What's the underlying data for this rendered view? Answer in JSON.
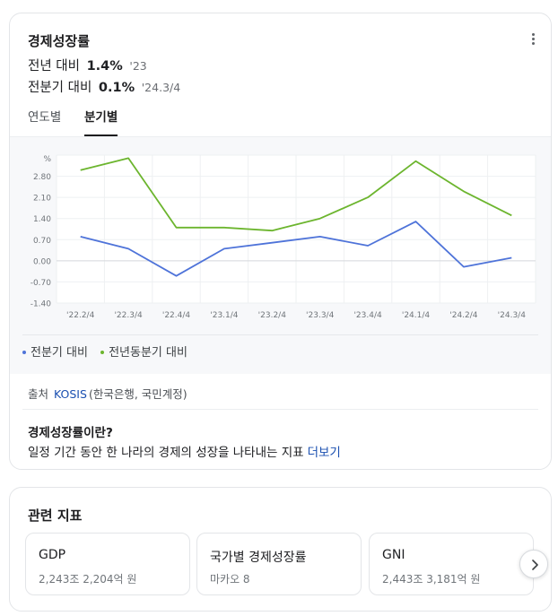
{
  "header": {
    "title": "경제성장률",
    "yoy": {
      "label": "전년 대비",
      "value": "1.4%",
      "period": "'23"
    },
    "qoq": {
      "label": "전분기 대비",
      "value": "0.1%",
      "period": "'24.3/4"
    }
  },
  "tabs": [
    {
      "label": "연도별",
      "active": false
    },
    {
      "label": "분기별",
      "active": true
    }
  ],
  "chart_data": {
    "type": "line",
    "ylabel": "%",
    "ylim": [
      -1.4,
      3.5
    ],
    "yticks": [
      -1.4,
      -0.7,
      0.0,
      0.7,
      1.4,
      2.1,
      2.8
    ],
    "ytick_labels": [
      "-1.40",
      "-0.70",
      "0.00",
      "0.70",
      "1.40",
      "2.10",
      "2.80"
    ],
    "categories": [
      "'22.2/4",
      "'22.3/4",
      "'22.4/4",
      "'23.1/4",
      "'23.2/4",
      "'23.3/4",
      "'23.4/4",
      "'24.1/4",
      "'24.2/4",
      "'24.3/4"
    ],
    "grid": true,
    "legend_position": "bottom-left",
    "series": [
      {
        "name": "전분기 대비",
        "color": "#4e73d9",
        "values": [
          0.8,
          0.4,
          -0.5,
          0.4,
          0.6,
          0.8,
          0.5,
          1.3,
          -0.2,
          0.1
        ]
      },
      {
        "name": "전년동분기 대비",
        "color": "#6cb52e",
        "values": [
          3.0,
          3.4,
          1.1,
          1.1,
          1.0,
          1.4,
          2.1,
          3.3,
          2.3,
          1.5
        ]
      }
    ]
  },
  "source": {
    "label": "출처",
    "link": "KOSIS",
    "detail": "(한국은행, 국민계정)"
  },
  "about": {
    "title": "경제성장률이란?",
    "text": "일정 기간 동안 한 나라의 경제의 성장을 나타내는 지표",
    "more": "더보기"
  },
  "related": {
    "title": "관련 지표",
    "items": [
      {
        "name": "GDP",
        "value": "2,243조 2,204억 원"
      },
      {
        "name": "국가별 경제성장률",
        "value": "마카오 8"
      },
      {
        "name": "GNI",
        "value": "2,443조 3,181억 원"
      }
    ]
  },
  "icons": {
    "more": "more-vertical-icon",
    "next": "chevron-right-icon"
  }
}
